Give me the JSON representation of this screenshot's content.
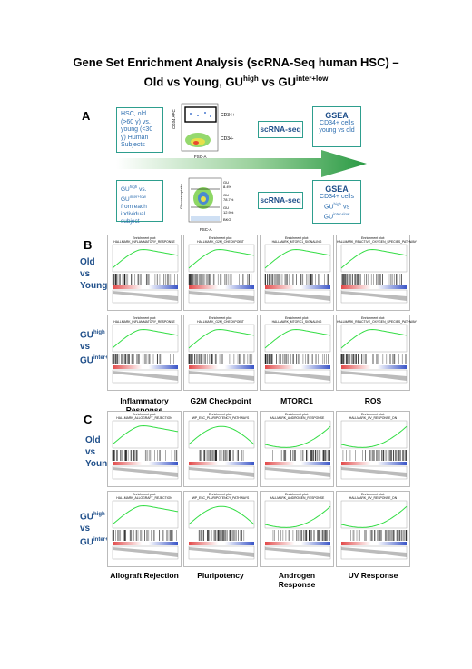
{
  "title": {
    "line1": "Gene Set Enrichment Analysis (scRNA-Seq human HSC) –",
    "line2_prefix": "Old vs Young, GU",
    "line2_sup1": "high",
    "line2_mid": " vs GU",
    "line2_sup2": "inter+low"
  },
  "panelA": {
    "letter": "A",
    "box1": "HSC, old (>60 y) vs. young (<30 y) Human Subjects",
    "box2_pre": "GU",
    "box2_sup1": "high",
    "box2_mid": " vs. GU",
    "box2_sup2": "inter+low",
    "box2_post": " from each individual subject",
    "scrna1": "scRNA-seq",
    "scrna2": "scRNA-seq",
    "gsea1_title": "GSEA",
    "gsea1_sub": "CD34+ cells young vs old",
    "gsea2_title": "GSEA",
    "gsea2_sub_pre": "CD34+ cells GU",
    "gsea2_sup1": "high",
    "gsea2_mid": " vs GU",
    "gsea2_sup2": "inter+low",
    "flow1": {
      "ylabel": "CD34 APC",
      "xlabel": "FSC-A",
      "gate_top": "CD34+",
      "gate_bottom": "CD34-"
    },
    "flow2": {
      "ylabel": "Glucose uptake",
      "xlabel": "FSC-A",
      "g1": "GU",
      "g1v": "8.4%",
      "g2": "GU",
      "g2v": "78.7%",
      "g3": "GU",
      "g3v": "12.9%",
      "foot": "BKG"
    }
  },
  "panelB": {
    "letter": "B",
    "row1": "Old vs Young",
    "row2_a": "GU",
    "row2_sup1": "high",
    "row2_b": "vs",
    "row2_c": "GU",
    "row2_sup2": "inter+low",
    "columns": [
      "Inflammatory Response",
      "G2M Checkpoint",
      "MTORC1",
      "ROS"
    ],
    "plot_title": "Enrichment plot:",
    "gene_sets": [
      "HALLMARK_INFLAMMATORY_RESPONSE",
      "HALLMARK_G2M_CHECKPOINT",
      "HALLMARK_MTORC1_SIGNALING",
      "HALLMARK_REACTIVE_OXYGEN_SPECIES_PATHWAY"
    ]
  },
  "panelC": {
    "letter": "C",
    "row1": "Old vs Young",
    "row2_a": "GU",
    "row2_sup1": "high",
    "row2_b": "vs",
    "row2_c": "GU",
    "row2_sup2": "inter+low",
    "columns": [
      "Allograft Rejection",
      "Pluripotency",
      "Androgen Response",
      "UV Response"
    ],
    "plot_title": "Enrichment plot:",
    "gene_sets": [
      "HALLMARK_ALLOGRAFT_REJECTION",
      "WP_ESC_PLURIPOTENCY_PATHWAYS",
      "HALLMARK_ANDROGEN_RESPONSE",
      "HALLMARK_UV_RESPONSE_DN"
    ]
  },
  "colors": {
    "accent": "#2e9e8e",
    "text_blue": "#1f4f8a",
    "es_curve": "#33dd44",
    "arrow": "#2a9a44"
  }
}
